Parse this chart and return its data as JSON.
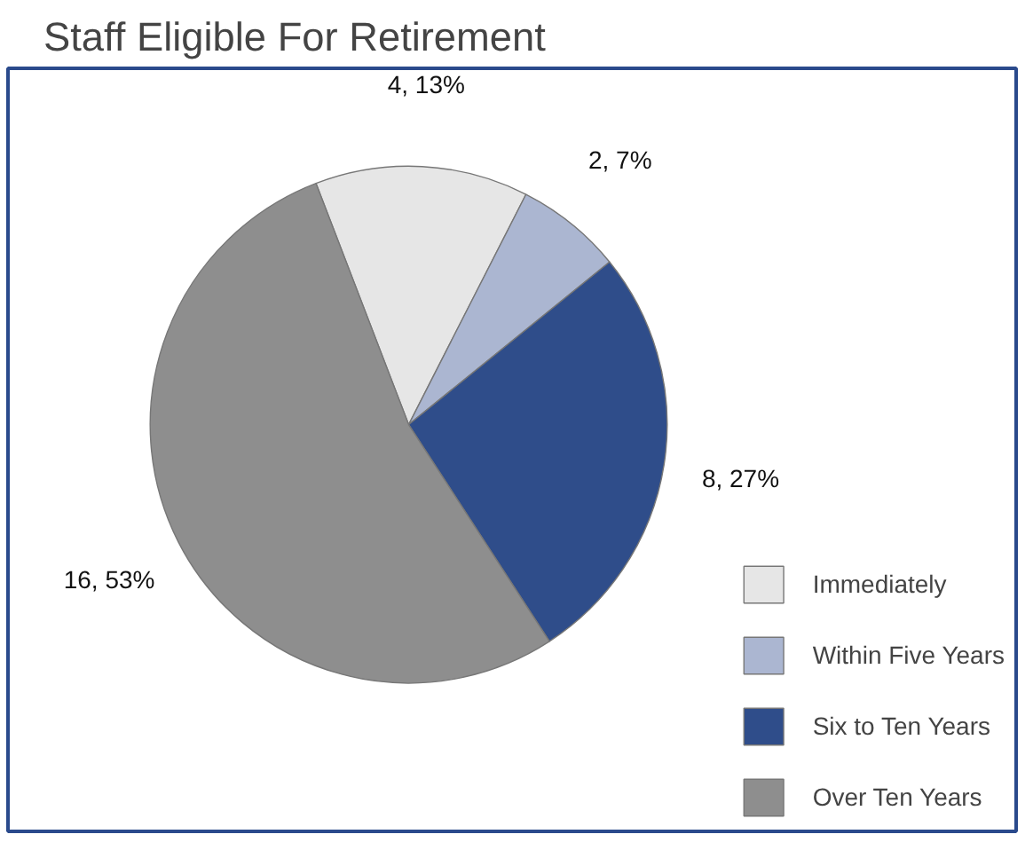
{
  "chart_data": {
    "type": "pie",
    "title": "Staff Eligible For Retirement",
    "categories": [
      "Immediately",
      "Within Five Years",
      "Six to Ten Years",
      "Over Ten Years"
    ],
    "values": [
      4,
      2,
      8,
      16
    ],
    "value_labels": [
      "4, 13%",
      "2, 7%",
      "8, 27%",
      "16, 53%"
    ],
    "colors": [
      "#e6e6e6",
      "#abb6d1",
      "#2f4d8a",
      "#8e8e8e"
    ],
    "legend": "bottom right"
  }
}
